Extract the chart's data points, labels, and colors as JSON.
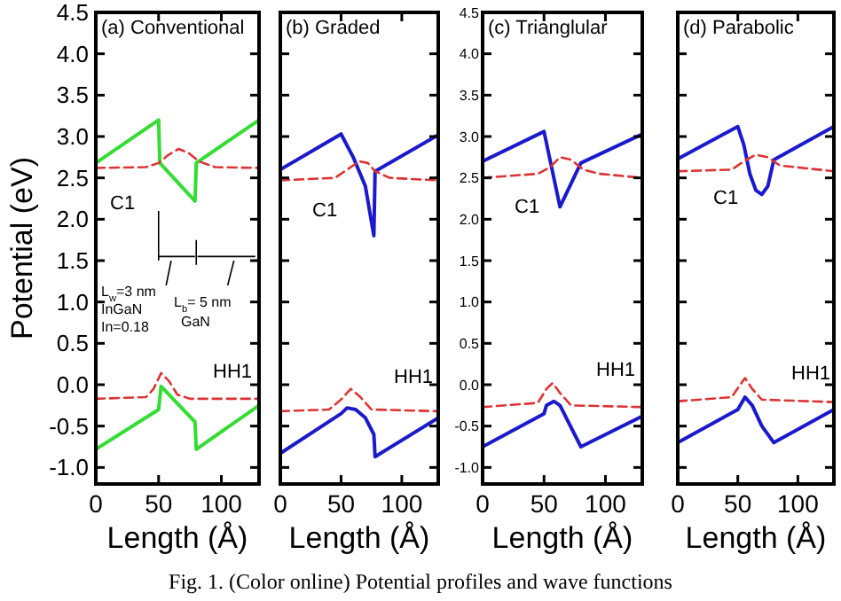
{
  "chart_data": [
    {
      "type": "line",
      "title": "(a) Conventional",
      "xlabel": "Length (Å)",
      "ylabel": "Potential (eV)",
      "xlim": [
        0,
        130
      ],
      "xticks": [
        0,
        50,
        100
      ],
      "ylim": [
        -1.2,
        4.5
      ],
      "yticks": [
        {
          "value": -1,
          "label": "-1.0"
        },
        -0.5,
        {
          "value": 0,
          "label": "0.0"
        },
        0.5,
        {
          "value": 1,
          "label": "1.0"
        },
        1.5,
        {
          "value": 2,
          "label": "2.0"
        },
        2.5,
        {
          "value": 3,
          "label": "3.0"
        },
        3.5,
        {
          "value": 4,
          "label": "4.0"
        },
        4.5
      ],
      "series": [
        {
          "color": "#33dd33",
          "x": [
            0,
            50,
            51,
            79,
            80,
            130
          ],
          "values": [
            2.68,
            3.2,
            2.68,
            2.22,
            2.68,
            3.2
          ],
          "line_style": "solid"
        },
        {
          "color": "#33dd33",
          "x": [
            0,
            50,
            52,
            79,
            80,
            130
          ],
          "values": [
            -0.78,
            -0.3,
            -0.02,
            -0.45,
            -0.78,
            -0.25
          ],
          "line_style": "solid"
        },
        {
          "color": "#dd3333",
          "x": [
            0,
            40,
            50,
            58,
            66,
            74,
            82,
            95,
            130
          ],
          "values": [
            2.62,
            2.63,
            2.68,
            2.78,
            2.85,
            2.8,
            2.7,
            2.63,
            2.62
          ],
          "line_style": "dashed"
        },
        {
          "color": "#dd3333",
          "x": [
            0,
            40,
            46,
            52,
            58,
            65,
            75,
            130
          ],
          "values": [
            -0.17,
            -0.15,
            -0.05,
            0.14,
            0.05,
            -0.12,
            -0.17,
            -0.17
          ],
          "line_style": "dashed"
        }
      ],
      "annotations": [
        "C1",
        "HH1",
        "L$_{w}$=3 nm",
        "InGaN",
        "In=0.18",
        "L$_{b}$= 5 nm",
        "GaN",
        "Fig. 1. (Color online) Potential profiles and wave functions"
      ]
    },
    {
      "type": "line",
      "title": "(b) Graded",
      "xlabel": "Length (Å)",
      "xlim": [
        0,
        130
      ],
      "xticks": [
        0,
        50,
        100
      ],
      "ylim": [
        -1.2,
        4.5
      ],
      "yticks": [
        -1.0,
        -0.5,
        0.0,
        0.5,
        1.0,
        1.5,
        2.0,
        2.5,
        3.0,
        3.5,
        4.0,
        4.5
      ],
      "tick_labels": "x",
      "series": [
        {
          "color": "#1a1acc",
          "x": [
            0,
            50,
            60,
            70,
            77,
            78,
            130
          ],
          "values": [
            2.6,
            3.03,
            2.75,
            2.4,
            1.8,
            2.58,
            3.02
          ],
          "line_style": "solid"
        },
        {
          "color": "#1a1acc",
          "x": [
            0,
            50,
            55,
            62,
            70,
            77,
            78,
            130
          ],
          "values": [
            -0.83,
            -0.35,
            -0.28,
            -0.3,
            -0.4,
            -0.6,
            -0.87,
            -0.4
          ],
          "line_style": "solid"
        },
        {
          "color": "#dd3333",
          "x": [
            0,
            45,
            55,
            65,
            72,
            78,
            90,
            130
          ],
          "values": [
            2.47,
            2.5,
            2.6,
            2.7,
            2.68,
            2.58,
            2.5,
            2.47
          ],
          "line_style": "dashed"
        },
        {
          "color": "#dd3333",
          "x": [
            0,
            40,
            50,
            58,
            66,
            75,
            130
          ],
          "values": [
            -0.32,
            -0.3,
            -0.18,
            -0.05,
            -0.15,
            -0.3,
            -0.32
          ],
          "line_style": "dashed"
        }
      ],
      "annotations": [
        "C1",
        "HH1"
      ]
    },
    {
      "type": "line",
      "title": "(c) Trianglular",
      "xlabel": "Length (Å)",
      "xlim": [
        0,
        130
      ],
      "xticks": [
        0,
        50,
        100
      ],
      "ylim": [
        -1.2,
        4.5
      ],
      "yticks": [
        {
          "value": -1,
          "label": "-1.0"
        },
        -0.5,
        {
          "value": 0,
          "label": "0.0"
        },
        0.5,
        {
          "value": 1,
          "label": "1.0"
        },
        1.5,
        {
          "value": 2,
          "label": "2.0"
        },
        2.5,
        {
          "value": 3,
          "label": "3.0"
        },
        3.5,
        {
          "value": 4,
          "label": "4.0"
        },
        4.5
      ],
      "series": [
        {
          "color": "#1a1acc",
          "x": [
            0,
            50,
            63,
            80,
            130
          ],
          "values": [
            2.7,
            3.06,
            2.15,
            2.68,
            3.03
          ],
          "line_style": "solid"
        },
        {
          "color": "#1a1acc",
          "x": [
            0,
            50,
            52,
            58,
            63,
            80,
            130
          ],
          "values": [
            -0.75,
            -0.35,
            -0.25,
            -0.2,
            -0.25,
            -0.75,
            -0.38
          ],
          "line_style": "solid"
        },
        {
          "color": "#dd3333",
          "x": [
            0,
            45,
            55,
            63,
            72,
            82,
            95,
            130
          ],
          "values": [
            2.5,
            2.55,
            2.63,
            2.75,
            2.72,
            2.6,
            2.55,
            2.5
          ],
          "line_style": "dashed"
        },
        {
          "color": "#dd3333",
          "x": [
            0,
            45,
            52,
            57,
            63,
            72,
            130
          ],
          "values": [
            -0.27,
            -0.22,
            -0.05,
            0.02,
            -0.1,
            -0.25,
            -0.27
          ],
          "line_style": "dashed"
        }
      ],
      "annotations": [
        "C1",
        "HH1"
      ]
    },
    {
      "type": "line",
      "title": "(d) Parabolic",
      "xlabel": "Length (Å)",
      "xlim": [
        0,
        130
      ],
      "xticks": [
        0,
        50,
        100
      ],
      "ylim": [
        -1.2,
        4.5
      ],
      "yticks": [
        -1.0,
        -0.5,
        0.0,
        0.5,
        1.0,
        1.5,
        2.0,
        2.5,
        3.0,
        3.5,
        4.0,
        4.5
      ],
      "tick_labels": "x",
      "series": [
        {
          "color": "#1a1acc",
          "x": [
            0,
            50,
            55,
            60,
            65,
            70,
            75,
            80,
            130
          ],
          "values": [
            2.73,
            3.12,
            2.9,
            2.55,
            2.35,
            2.3,
            2.4,
            2.72,
            3.12
          ],
          "line_style": "solid"
        },
        {
          "color": "#1a1acc",
          "x": [
            0,
            50,
            56,
            62,
            70,
            80,
            130
          ],
          "values": [
            -0.7,
            -0.3,
            -0.15,
            -0.25,
            -0.5,
            -0.7,
            -0.3
          ],
          "line_style": "solid"
        },
        {
          "color": "#dd3333",
          "x": [
            0,
            45,
            55,
            65,
            75,
            85,
            130
          ],
          "values": [
            2.58,
            2.6,
            2.7,
            2.78,
            2.75,
            2.65,
            2.58
          ],
          "line_style": "dashed"
        },
        {
          "color": "#dd3333",
          "x": [
            0,
            45,
            52,
            56,
            62,
            70,
            130
          ],
          "values": [
            -0.2,
            -0.15,
            0.0,
            0.08,
            -0.05,
            -0.18,
            -0.21
          ],
          "line_style": "dashed"
        }
      ],
      "annotations": [
        "C1",
        "HH1"
      ]
    }
  ]
}
